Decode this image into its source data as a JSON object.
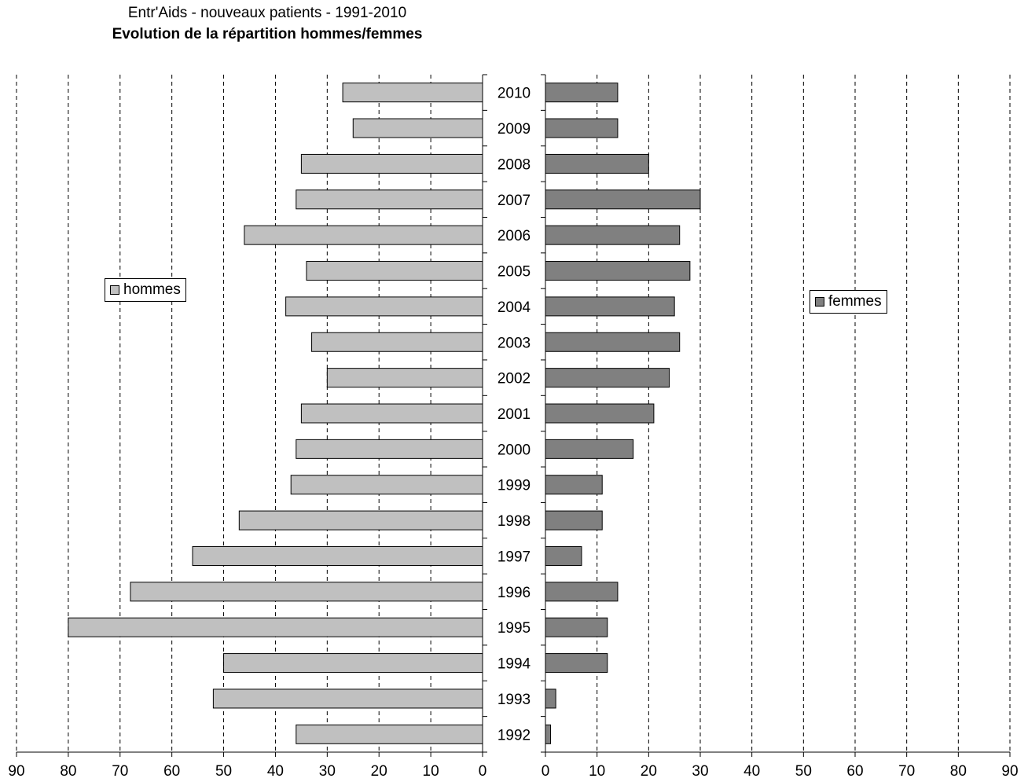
{
  "chart_data": {
    "type": "bar",
    "orientation": "horizontal",
    "title": "Entr'Aids - nouveaux patients - 1991-2010",
    "subtitle": "Evolution de la répartition hommes/femmes",
    "categories": [
      "2010",
      "2009",
      "2008",
      "2007",
      "2006",
      "2005",
      "2004",
      "2003",
      "2002",
      "2001",
      "2000",
      "1999",
      "1998",
      "1997",
      "1996",
      "1995",
      "1994",
      "1993",
      "1992"
    ],
    "series": [
      {
        "name": "hommes",
        "color": "#c0c0c0",
        "values": [
          27,
          25,
          35,
          36,
          46,
          34,
          38,
          33,
          30,
          35,
          36,
          37,
          47,
          56,
          68,
          80,
          50,
          52,
          36
        ]
      },
      {
        "name": "femmes",
        "color": "#808080",
        "values": [
          14,
          14,
          20,
          30,
          26,
          28,
          25,
          26,
          24,
          21,
          17,
          11,
          11,
          7,
          14,
          12,
          12,
          2,
          1
        ]
      }
    ],
    "xlim": [
      0,
      90
    ],
    "ticks": [
      "90",
      "80",
      "70",
      "60",
      "50",
      "40",
      "30",
      "20",
      "10",
      "0"
    ],
    "ticks_right": [
      "0",
      "10",
      "20",
      "30",
      "40",
      "50",
      "60",
      "70",
      "80",
      "90"
    ],
    "grid": true,
    "legend_left": "hommes",
    "legend_right": "femmes"
  }
}
